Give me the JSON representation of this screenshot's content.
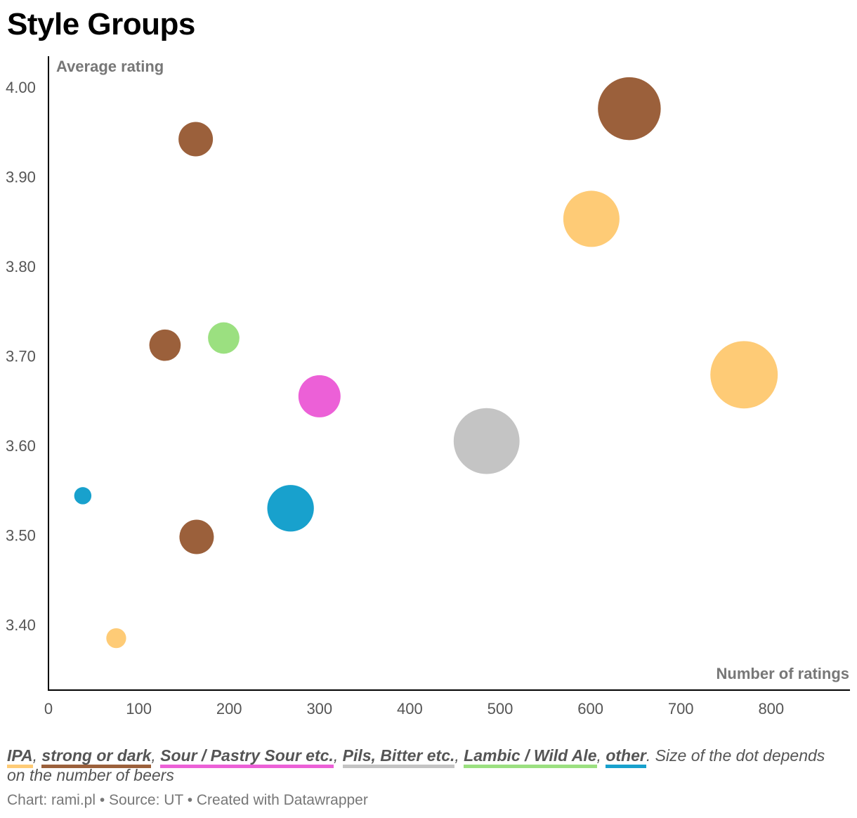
{
  "header": {
    "title": "Style Groups"
  },
  "chart_data": {
    "type": "scatter",
    "ylabel": "Average rating",
    "xlabel": "Number of ratings",
    "xlim": [
      0,
      890
    ],
    "ylim": [
      3.325,
      4.035
    ],
    "x_ticks": [
      {
        "value": 0,
        "label": "0"
      },
      {
        "value": 100,
        "label": "100"
      },
      {
        "value": 200,
        "label": "200"
      },
      {
        "value": 300,
        "label": "300"
      },
      {
        "value": 400,
        "label": "400"
      },
      {
        "value": 500,
        "label": "500"
      },
      {
        "value": 600,
        "label": "600"
      },
      {
        "value": 700,
        "label": "700"
      },
      {
        "value": 800,
        "label": "800"
      }
    ],
    "y_ticks": [
      {
        "value": 3.4,
        "label": "3.40"
      },
      {
        "value": 3.5,
        "label": "3.50"
      },
      {
        "value": 3.6,
        "label": "3.60"
      },
      {
        "value": 3.7,
        "label": "3.70"
      },
      {
        "value": 3.8,
        "label": "3.80"
      },
      {
        "value": 3.9,
        "label": "3.90"
      },
      {
        "value": 4.0,
        "label": "4.00"
      }
    ],
    "series": [
      {
        "name": "IPA",
        "color": "#fecb76",
        "points": [
          {
            "x": 75,
            "y": 3.385,
            "size": 2
          },
          {
            "x": 601,
            "y": 3.853,
            "size": 16
          },
          {
            "x": 770,
            "y": 3.679,
            "size": 23
          }
        ]
      },
      {
        "name": "strong or dark",
        "color": "#9b603b",
        "points": [
          {
            "x": 163,
            "y": 3.942,
            "size": 6
          },
          {
            "x": 129,
            "y": 3.712,
            "size": 5
          },
          {
            "x": 164,
            "y": 3.498,
            "size": 6
          },
          {
            "x": 643,
            "y": 3.976,
            "size": 20
          }
        ]
      },
      {
        "name": "Sour / Pastry Sour etc.",
        "color": "#ec60d7",
        "points": [
          {
            "x": 300,
            "y": 3.655,
            "size": 9
          }
        ]
      },
      {
        "name": "Pils, Bitter etc.",
        "color": "#c4c4c4",
        "points": [
          {
            "x": 485,
            "y": 3.605,
            "size": 22
          }
        ]
      },
      {
        "name": "Lambic / Wild Ale",
        "color": "#9be080",
        "points": [
          {
            "x": 194,
            "y": 3.72,
            "size": 5
          }
        ]
      },
      {
        "name": "other",
        "color": "#18a1cd",
        "points": [
          {
            "x": 38,
            "y": 3.544,
            "size": 1.5
          },
          {
            "x": 268,
            "y": 3.53,
            "size": 11
          }
        ]
      }
    ]
  },
  "legend": {
    "items": [
      {
        "label": "IPA",
        "color": "#fecb76"
      },
      {
        "label": "strong or dark",
        "color": "#9b603b"
      },
      {
        "label": "Sour / Pastry Sour etc.",
        "color": "#ec60d7"
      },
      {
        "label": "Pils, Bitter etc.",
        "color": "#c4c4c4"
      },
      {
        "label": "Lambic / Wild Ale",
        "color": "#9be080"
      },
      {
        "label": "other",
        "color": "#18a1cd"
      }
    ],
    "note": ". Size of the dot depends on the number of beers"
  },
  "footer": {
    "text": "Chart: rami.pl • Source: UT • Created with Datawrapper"
  }
}
